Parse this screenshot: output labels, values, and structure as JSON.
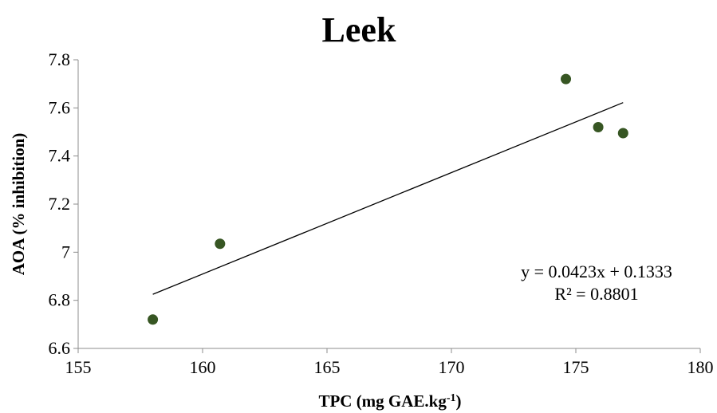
{
  "chart_data": {
    "type": "scatter",
    "title": "Leek",
    "xlabel": "TPC (mg GAE.kg",
    "xlabel_superscript": "-1",
    "xlabel_suffix": ")",
    "ylabel": "AOA  (% inhibition)",
    "xlim": [
      155,
      180
    ],
    "ylim": [
      6.6,
      7.8
    ],
    "x_ticks": [
      155,
      160,
      165,
      170,
      175,
      180
    ],
    "y_ticks": [
      6.6,
      6.8,
      7,
      7.2,
      7.4,
      7.6,
      7.8
    ],
    "y_tick_labels": [
      "6.6",
      "6.8",
      "7",
      "7.2",
      "7.4",
      "7.6",
      "7.8"
    ],
    "series": [
      {
        "x": [
          158.0,
          160.7,
          174.6,
          175.9,
          176.9
        ],
        "y": [
          6.72,
          7.035,
          7.72,
          7.52,
          7.495
        ],
        "color": "#375623"
      }
    ],
    "trendline": {
      "type": "linear",
      "x_range": [
        158.0,
        176.9
      ],
      "y_range": [
        6.825,
        7.622
      ],
      "color": "#000000"
    },
    "annotations": {
      "equation": "y = 0.0423x + 0.1333",
      "r_squared": "R² = 0.8801"
    },
    "grid": false,
    "legend": "none"
  }
}
